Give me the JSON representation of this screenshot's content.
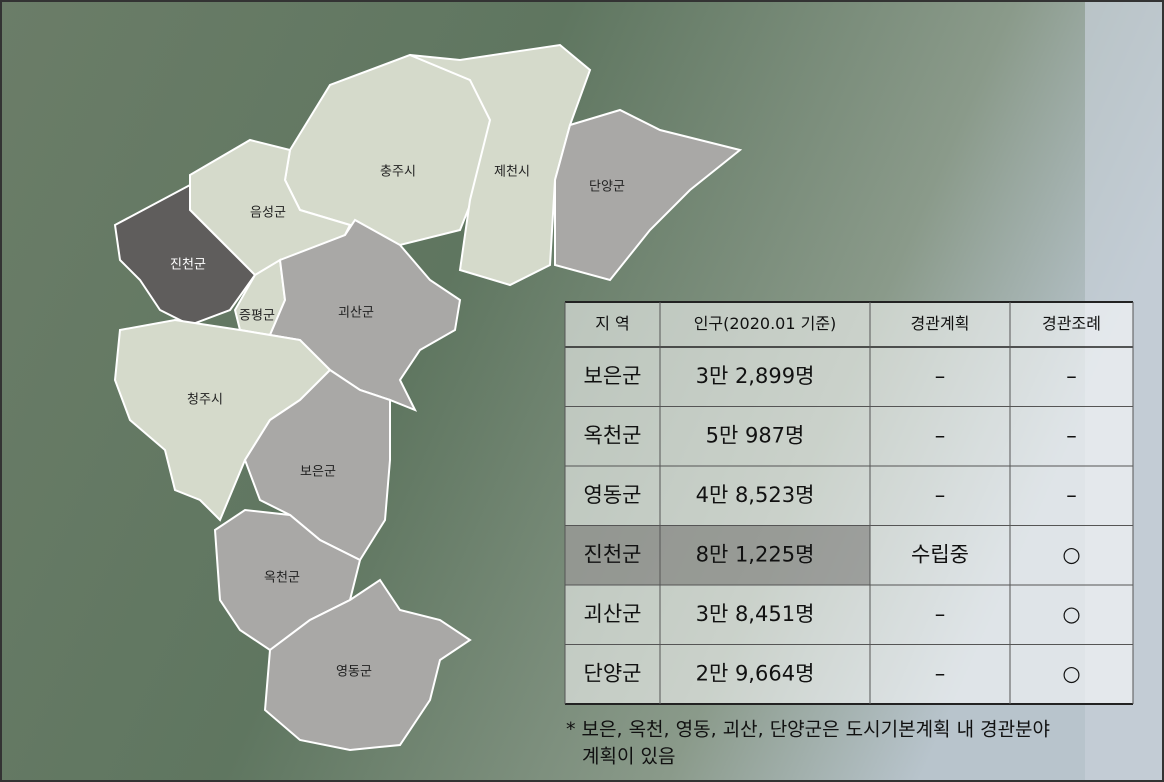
{
  "map": {
    "regions": [
      "충주시",
      "제천시",
      "단양군",
      "음성군",
      "진천군",
      "증평군",
      "괴산군",
      "청주시",
      "보은군",
      "옥천군",
      "영동군"
    ]
  },
  "table": {
    "header": [
      "지 역",
      "인구(2020.01 기준)",
      "경관계획",
      "경관조례"
    ],
    "rows": [
      [
        "보은군",
        "3만 2,899명",
        "–",
        "–"
      ],
      [
        "옥천군",
        "5만 987명",
        "–",
        "–"
      ],
      [
        "영동군",
        "4만 8,523명",
        "–",
        "–"
      ],
      [
        "진천군",
        "8만 1,225명",
        "수립중",
        "○"
      ],
      [
        "괴산군",
        "3만 8,451명",
        "–",
        "○"
      ],
      [
        "단양군",
        "2만 9,664명",
        "–",
        "○"
      ]
    ]
  },
  "footnote": [
    "* 보은, 옥천, 영동, 괴산, 단양군은 도시기본계획 내 경관분야",
    "계획이 있음"
  ]
}
